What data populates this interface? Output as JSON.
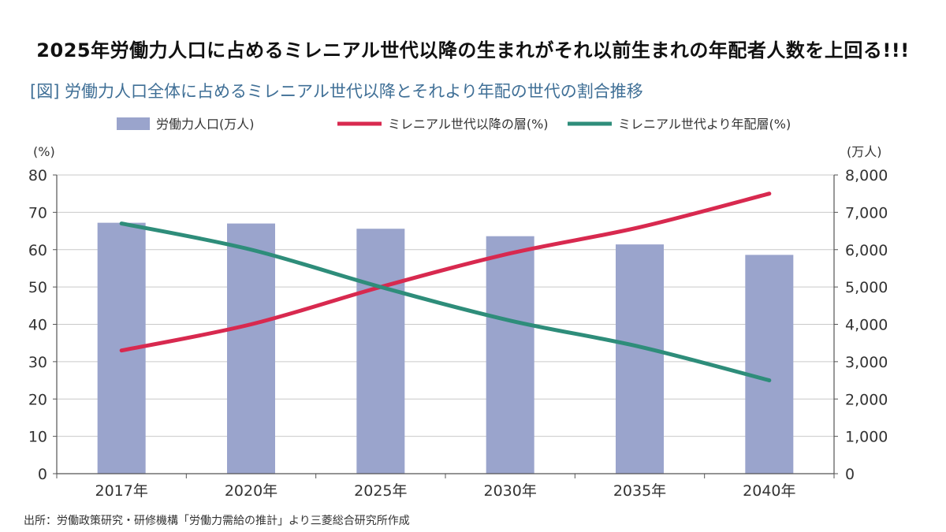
{
  "headline": "2025年労働力人口に占めるミレニアル世代以降の生まれがそれ以前生まれの年配者人数を上回る!!!",
  "figure_title": "[図] 労働力人口全体に占めるミレニアル世代以降とそれより年配の世代の割合推移",
  "source": "出所：労働政策研究・研修機構「労働力需給の推計」より三菱総合研究所作成",
  "colors": {
    "bar": "#9aa4cc",
    "millennial": "#d8294f",
    "older": "#2e8d7a",
    "grid": "#c9c9c9",
    "axis": "#555555"
  },
  "chart_data": {
    "type": "bar+line",
    "categories": [
      "2017年",
      "2020年",
      "2025年",
      "2030年",
      "2035年",
      "2040年"
    ],
    "left_axis": {
      "unit_label": "(%)",
      "ylim": [
        0,
        80
      ],
      "ticks": [
        "0",
        "10",
        "20",
        "30",
        "40",
        "50",
        "60",
        "70",
        "80"
      ]
    },
    "right_axis": {
      "unit_label": "(万人)",
      "ylim": [
        0,
        8000
      ],
      "ticks": [
        "0",
        "1,000",
        "2,000",
        "3,000",
        "4,000",
        "5,000",
        "6,000",
        "7,000",
        "8,000"
      ]
    },
    "series": [
      {
        "name": "労働力人口(万人)",
        "type": "bar",
        "axis": "right",
        "values": [
          6720,
          6700,
          6560,
          6360,
          6140,
          5860
        ]
      },
      {
        "name": "ミレニアル世代以降の層(%)",
        "type": "line",
        "axis": "left",
        "values": [
          33,
          40,
          50,
          59,
          66,
          75
        ]
      },
      {
        "name": "ミレニアル世代より年配層(%)",
        "type": "line",
        "axis": "left",
        "values": [
          67,
          60,
          50,
          41,
          34,
          25
        ]
      }
    ],
    "grid": true,
    "legend": "top"
  }
}
